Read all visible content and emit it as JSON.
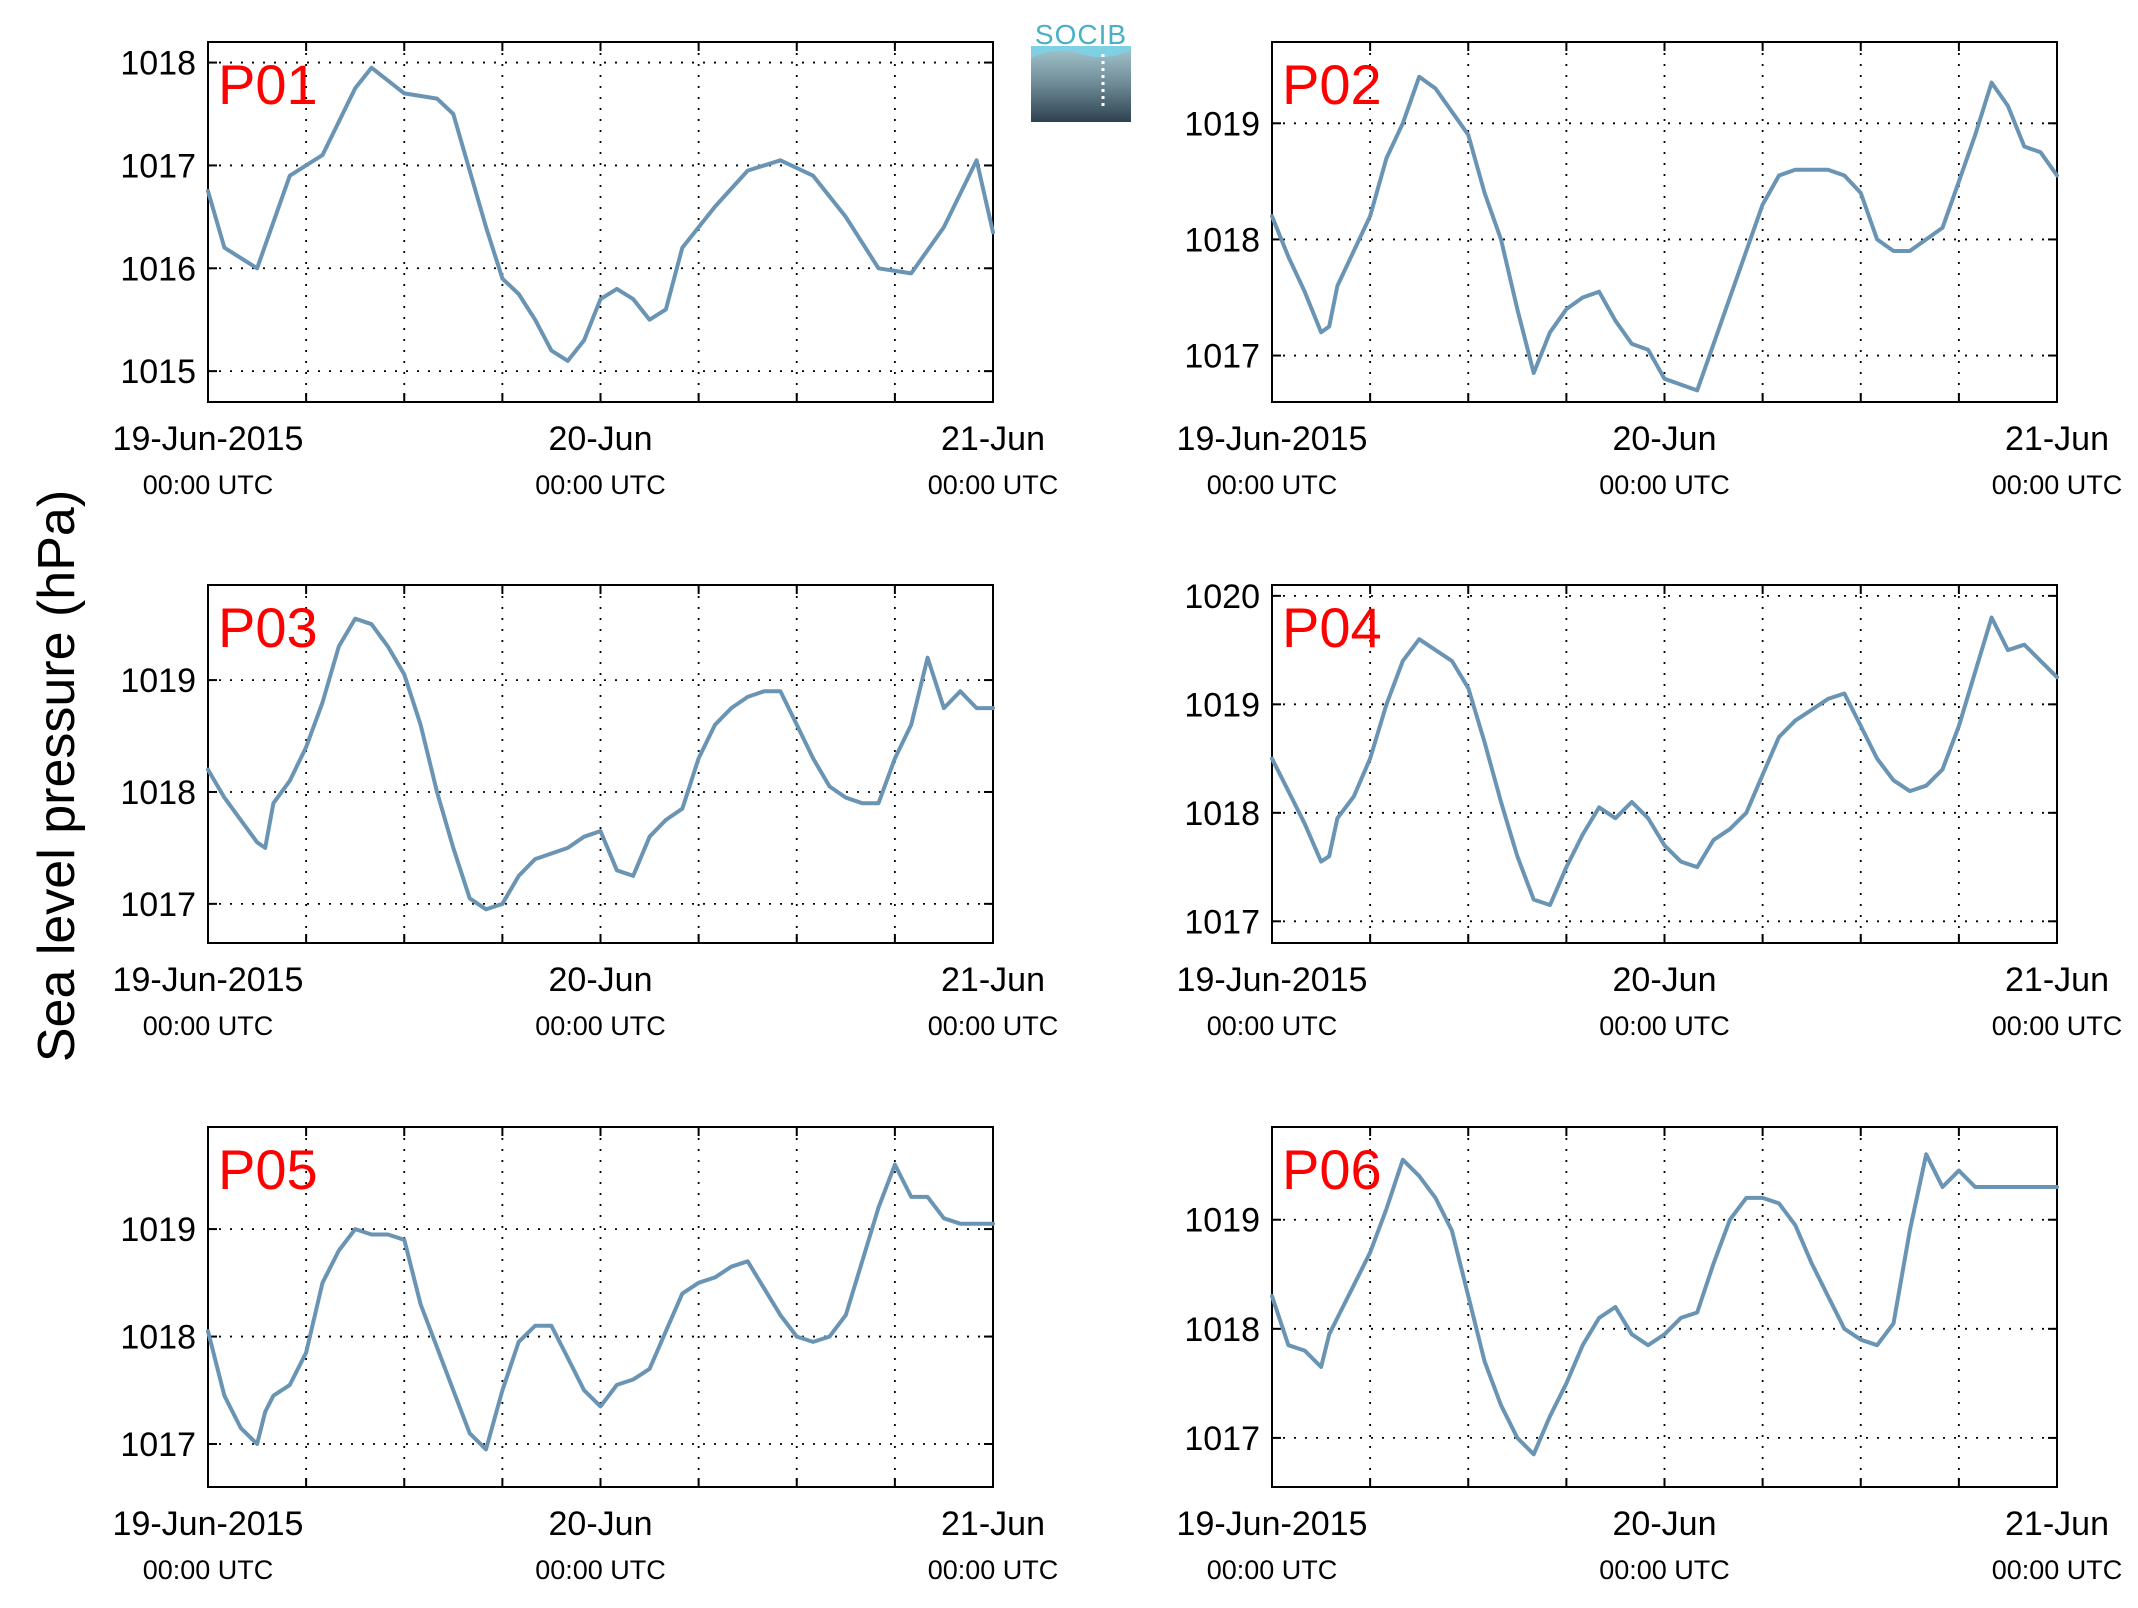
{
  "figure": {
    "ylabel": "Sea level pressure (hPa)",
    "logo_text": "SOCIB"
  },
  "colors": {
    "line": "#6a94b4",
    "title": "#ff0000",
    "logo_text": "#4ab0c8"
  },
  "xticks": [
    {
      "main": "19-Jun-2015",
      "sub": "00:00 UTC"
    },
    {
      "main": "20-Jun",
      "sub": "00:00 UTC"
    },
    {
      "main": "21-Jun",
      "sub": "00:00 UTC"
    }
  ],
  "chart_data": [
    {
      "type": "line",
      "title": "P01",
      "xlim": [
        "2015-06-19 00:00",
        "2015-06-21 00:00"
      ],
      "ylim": [
        1014.7,
        1018.2
      ],
      "yticks": [
        1015,
        1016,
        1017,
        1018
      ],
      "grid": "dotted",
      "x": [
        0,
        1,
        3,
        5,
        7,
        9,
        10,
        12,
        14,
        15,
        17,
        18,
        19,
        20,
        21,
        22,
        23,
        24,
        25,
        26,
        27,
        28,
        29,
        31,
        33,
        35,
        37,
        39,
        41,
        43,
        45,
        47,
        48
      ],
      "y": [
        1016.75,
        1016.2,
        1016.0,
        1016.9,
        1017.1,
        1017.75,
        1017.95,
        1017.7,
        1017.65,
        1017.5,
        1016.4,
        1015.9,
        1015.75,
        1015.5,
        1015.2,
        1015.1,
        1015.3,
        1015.7,
        1015.8,
        1015.7,
        1015.5,
        1015.6,
        1016.2,
        1016.6,
        1016.95,
        1017.05,
        1016.9,
        1016.5,
        1016.0,
        1015.95,
        1016.4,
        1017.05,
        1016.35
      ]
    },
    {
      "type": "line",
      "title": "P02",
      "xlim": [
        "2015-06-19 00:00",
        "2015-06-21 00:00"
      ],
      "ylim": [
        1016.6,
        1019.7
      ],
      "yticks": [
        1017,
        1018,
        1019
      ],
      "grid": "dotted",
      "x": [
        0,
        1,
        2,
        3,
        3.5,
        4,
        5,
        6,
        7,
        8,
        9,
        10,
        11,
        12,
        13,
        14,
        15,
        16,
        17,
        18,
        19,
        20,
        21,
        22,
        23,
        24,
        25,
        26,
        27,
        28,
        29,
        30,
        31,
        32,
        33,
        34,
        35,
        36,
        37,
        38,
        39,
        40,
        41,
        42,
        43,
        44,
        45,
        46,
        47,
        48
      ],
      "y": [
        1018.2,
        1017.85,
        1017.55,
        1017.2,
        1017.25,
        1017.6,
        1017.9,
        1018.2,
        1018.7,
        1019.0,
        1019.4,
        1019.3,
        1019.1,
        1018.9,
        1018.4,
        1018.0,
        1017.4,
        1016.85,
        1017.2,
        1017.4,
        1017.5,
        1017.55,
        1017.3,
        1017.1,
        1017.05,
        1016.8,
        1016.75,
        1016.7,
        1017.1,
        1017.5,
        1017.9,
        1018.3,
        1018.55,
        1018.6,
        1018.6,
        1018.6,
        1018.55,
        1018.4,
        1018.0,
        1017.9,
        1017.9,
        1018.0,
        1018.1,
        1018.5,
        1018.9,
        1019.35,
        1019.15,
        1018.8,
        1018.75,
        1018.55
      ]
    },
    {
      "type": "line",
      "title": "P03",
      "xlim": [
        "2015-06-19 00:00",
        "2015-06-21 00:00"
      ],
      "ylim": [
        1016.65,
        1019.85
      ],
      "yticks": [
        1017,
        1018,
        1019
      ],
      "grid": "dotted",
      "x": [
        0,
        1,
        2,
        3,
        3.5,
        4,
        5,
        6,
        7,
        8,
        9,
        10,
        11,
        12,
        13,
        14,
        15,
        16,
        17,
        18,
        19,
        20,
        21,
        22,
        23,
        24,
        25,
        26,
        27,
        28,
        29,
        30,
        31,
        32,
        33,
        34,
        35,
        36,
        37,
        38,
        39,
        40,
        41,
        42,
        43,
        44,
        45,
        46,
        47,
        48
      ],
      "y": [
        1018.2,
        1017.95,
        1017.75,
        1017.55,
        1017.5,
        1017.9,
        1018.1,
        1018.4,
        1018.8,
        1019.3,
        1019.55,
        1019.5,
        1019.3,
        1019.05,
        1018.6,
        1018.0,
        1017.5,
        1017.05,
        1016.95,
        1017.0,
        1017.25,
        1017.4,
        1017.45,
        1017.5,
        1017.6,
        1017.65,
        1017.3,
        1017.25,
        1017.6,
        1017.75,
        1017.85,
        1018.3,
        1018.6,
        1018.75,
        1018.85,
        1018.9,
        1018.9,
        1018.6,
        1018.3,
        1018.05,
        1017.95,
        1017.9,
        1017.9,
        1018.3,
        1018.6,
        1019.2,
        1018.75,
        1018.9,
        1018.75,
        1018.75
      ]
    },
    {
      "type": "line",
      "title": "P04",
      "xlim": [
        "2015-06-19 00:00",
        "2015-06-21 00:00"
      ],
      "ylim": [
        1016.8,
        1020.1
      ],
      "yticks": [
        1017,
        1018,
        1019,
        1020
      ],
      "grid": "dotted",
      "x": [
        0,
        1,
        2,
        3,
        3.5,
        4,
        5,
        6,
        7,
        8,
        9,
        10,
        11,
        12,
        13,
        14,
        15,
        16,
        17,
        18,
        19,
        20,
        21,
        22,
        23,
        24,
        25,
        26,
        27,
        28,
        29,
        30,
        31,
        32,
        33,
        34,
        35,
        36,
        37,
        38,
        39,
        40,
        41,
        42,
        43,
        44,
        45,
        46,
        47,
        48
      ],
      "y": [
        1018.5,
        1018.2,
        1017.9,
        1017.55,
        1017.6,
        1017.95,
        1018.15,
        1018.5,
        1019.0,
        1019.4,
        1019.6,
        1019.5,
        1019.4,
        1019.15,
        1018.65,
        1018.1,
        1017.6,
        1017.2,
        1017.15,
        1017.5,
        1017.8,
        1018.05,
        1017.95,
        1018.1,
        1017.95,
        1017.7,
        1017.55,
        1017.5,
        1017.75,
        1017.85,
        1018.0,
        1018.35,
        1018.7,
        1018.85,
        1018.95,
        1019.05,
        1019.1,
        1018.8,
        1018.5,
        1018.3,
        1018.2,
        1018.25,
        1018.4,
        1018.8,
        1019.3,
        1019.8,
        1019.5,
        1019.55,
        1019.4,
        1019.25
      ]
    },
    {
      "type": "line",
      "title": "P05",
      "xlim": [
        "2015-06-19 00:00",
        "2015-06-21 00:00"
      ],
      "ylim": [
        1016.6,
        1019.95
      ],
      "yticks": [
        1017,
        1018,
        1019
      ],
      "grid": "dotted",
      "x": [
        0,
        1,
        2,
        3,
        3.5,
        4,
        5,
        6,
        7,
        8,
        9,
        10,
        11,
        12,
        13,
        14,
        15,
        16,
        17,
        18,
        19,
        20,
        21,
        22,
        23,
        24,
        25,
        26,
        27,
        28,
        29,
        30,
        31,
        32,
        33,
        34,
        35,
        36,
        37,
        38,
        39,
        40,
        41,
        42,
        43,
        44,
        45,
        46,
        47,
        48
      ],
      "y": [
        1018.05,
        1017.45,
        1017.15,
        1017.0,
        1017.3,
        1017.45,
        1017.55,
        1017.85,
        1018.5,
        1018.8,
        1019.0,
        1018.95,
        1018.95,
        1018.9,
        1018.3,
        1017.9,
        1017.5,
        1017.1,
        1016.95,
        1017.5,
        1017.95,
        1018.1,
        1018.1,
        1017.8,
        1017.5,
        1017.35,
        1017.55,
        1017.6,
        1017.7,
        1018.05,
        1018.4,
        1018.5,
        1018.55,
        1018.65,
        1018.7,
        1018.45,
        1018.2,
        1018.0,
        1017.95,
        1018.0,
        1018.2,
        1018.7,
        1019.2,
        1019.6,
        1019.3,
        1019.3,
        1019.1,
        1019.05,
        1019.05,
        1019.05
      ]
    },
    {
      "type": "line",
      "title": "P06",
      "xlim": [
        "2015-06-19 00:00",
        "2015-06-21 00:00"
      ],
      "ylim": [
        1016.55,
        1019.85
      ],
      "yticks": [
        1017,
        1018,
        1019
      ],
      "grid": "dotted",
      "x": [
        0,
        1,
        2,
        3,
        3.5,
        4,
        5,
        6,
        7,
        8,
        9,
        10,
        11,
        12,
        13,
        14,
        15,
        16,
        17,
        18,
        19,
        20,
        21,
        22,
        23,
        24,
        25,
        26,
        27,
        28,
        29,
        30,
        31,
        32,
        33,
        34,
        35,
        36,
        37,
        38,
        39,
        40,
        41,
        42,
        43,
        44,
        45,
        46,
        47,
        48
      ],
      "y": [
        1018.3,
        1017.85,
        1017.8,
        1017.65,
        1017.95,
        1018.1,
        1018.4,
        1018.7,
        1019.1,
        1019.55,
        1019.4,
        1019.2,
        1018.9,
        1018.3,
        1017.7,
        1017.3,
        1017.0,
        1016.85,
        1017.2,
        1017.5,
        1017.85,
        1018.1,
        1018.2,
        1017.95,
        1017.85,
        1017.95,
        1018.1,
        1018.15,
        1018.6,
        1019.0,
        1019.2,
        1019.2,
        1019.15,
        1018.95,
        1018.6,
        1018.3,
        1018.0,
        1017.9,
        1017.85,
        1018.05,
        1018.9,
        1019.6,
        1019.3,
        1019.45,
        1019.3,
        1019.3,
        1019.3,
        1019.3,
        1019.3,
        1019.3
      ]
    }
  ]
}
